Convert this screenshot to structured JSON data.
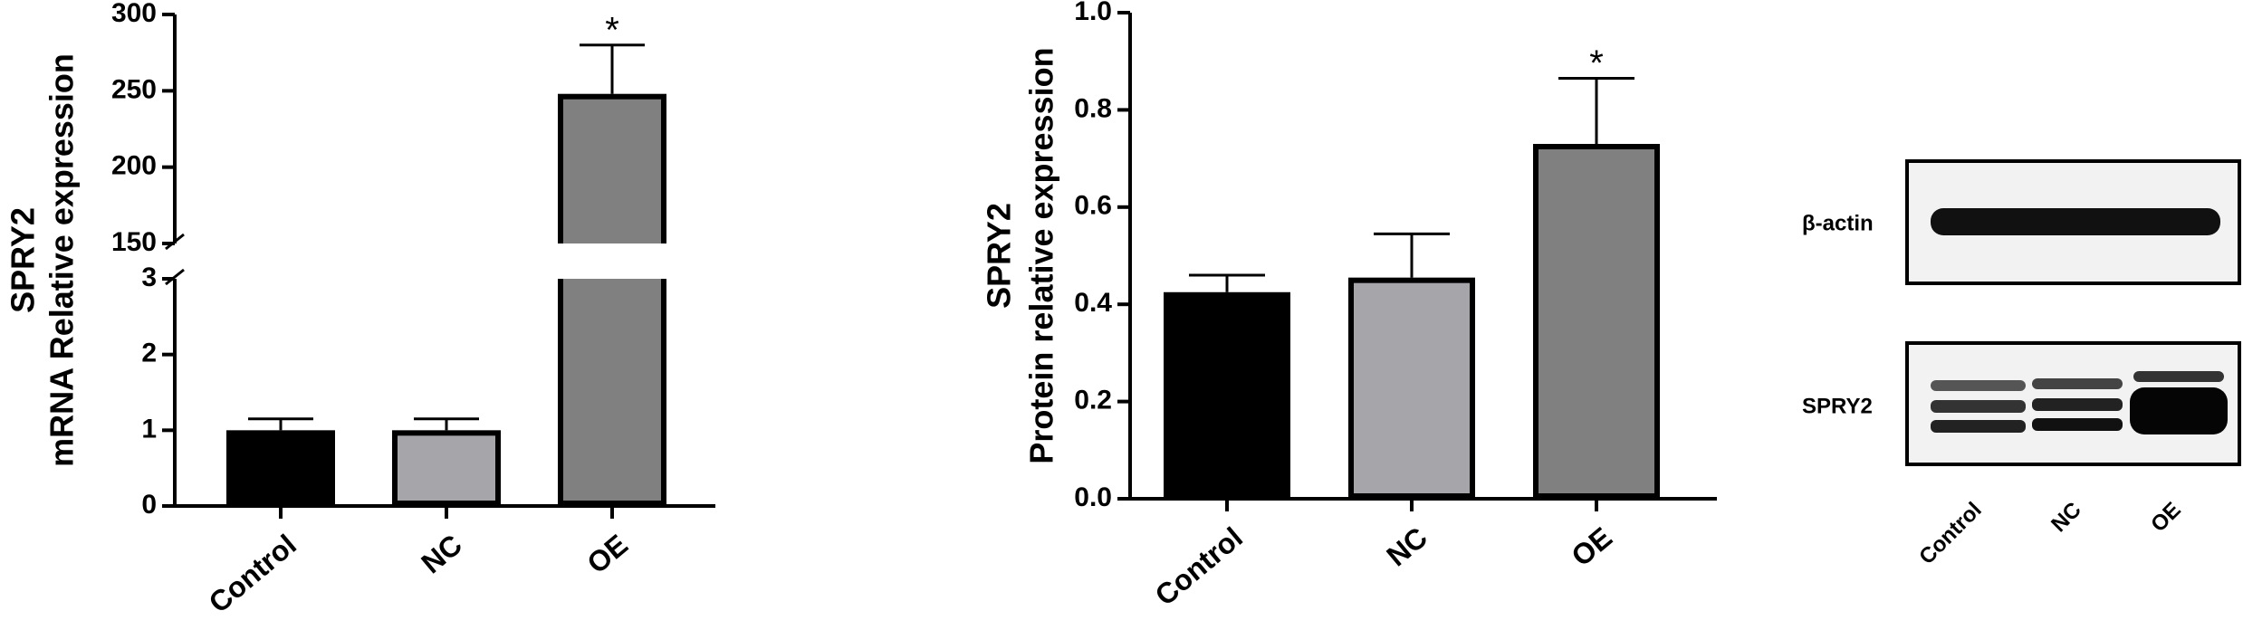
{
  "chart_data": [
    {
      "type": "bar",
      "y_title_lines": [
        "SPRY2",
        "mRNA Relative expression"
      ],
      "categories": [
        "Control",
        "NC",
        "OE"
      ],
      "values": [
        1,
        1,
        248
      ],
      "errors": [
        0.15,
        0.15,
        32
      ],
      "colors": [
        "#000000",
        "#a5a5aa",
        "#808080"
      ],
      "ylim": [
        0,
        300
      ],
      "ybreak": [
        3,
        150
      ],
      "yticks": [
        0,
        1,
        2,
        3,
        150,
        200,
        250,
        300
      ],
      "annotations": [
        {
          "label": "*",
          "category": "OE"
        }
      ]
    },
    {
      "type": "bar",
      "y_title_lines": [
        "SPRY2",
        "Protein relative expression"
      ],
      "categories": [
        "Control",
        "NC",
        "OE"
      ],
      "values": [
        0.425,
        0.455,
        0.73
      ],
      "errors": [
        0.035,
        0.09,
        0.135
      ],
      "colors": [
        "#000000",
        "#a5a5aa",
        "#808080"
      ],
      "ylim": [
        0,
        1
      ],
      "yticks": [
        {
          "value": 0,
          "label": "0.0"
        },
        0.2,
        0.4,
        0.6,
        0.8,
        {
          "value": 1,
          "label": "1.0"
        }
      ],
      "annotations": [
        {
          "label": "*",
          "category": "OE"
        }
      ]
    }
  ],
  "blot": {
    "rows": [
      "β-actin",
      "SPRY2"
    ],
    "lanes": [
      "Control",
      "NC",
      "OE"
    ]
  }
}
